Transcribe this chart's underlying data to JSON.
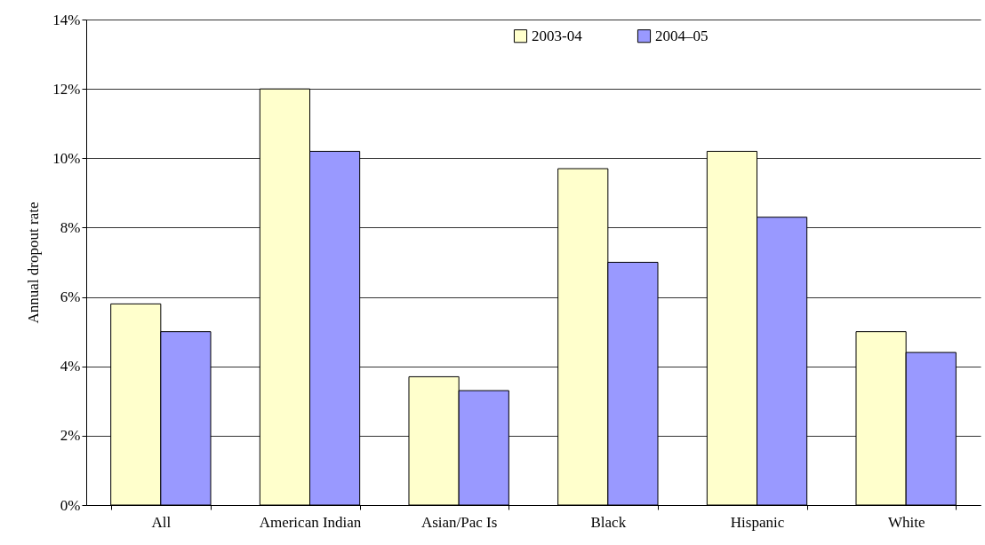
{
  "chart_data": {
    "type": "bar",
    "ylabel": "Annual dropout rate",
    "categories": [
      "All",
      "American Indian",
      "Asian/Pac Is",
      "Black",
      "Hispanic",
      "White"
    ],
    "series": [
      {
        "name": "2003-04",
        "color": "#ffffcc",
        "values": [
          5.8,
          12.0,
          3.7,
          9.7,
          10.2,
          5.0
        ]
      },
      {
        "name": "2004–05",
        "color": "#9999ff",
        "values": [
          5.0,
          10.2,
          3.3,
          7.0,
          8.3,
          4.4
        ]
      }
    ],
    "ylim": [
      0,
      14
    ],
    "yticks": [
      {
        "value": 0,
        "label": "0%"
      },
      {
        "value": 2,
        "label": "2%"
      },
      {
        "value": 4,
        "label": "4%"
      },
      {
        "value": 6,
        "label": "6%"
      },
      {
        "value": 8,
        "label": "8%"
      },
      {
        "value": 10,
        "label": "10%"
      },
      {
        "value": 12,
        "label": "12%"
      },
      {
        "value": 14,
        "label": "14%"
      }
    ],
    "grid": "y",
    "legend": "top"
  }
}
